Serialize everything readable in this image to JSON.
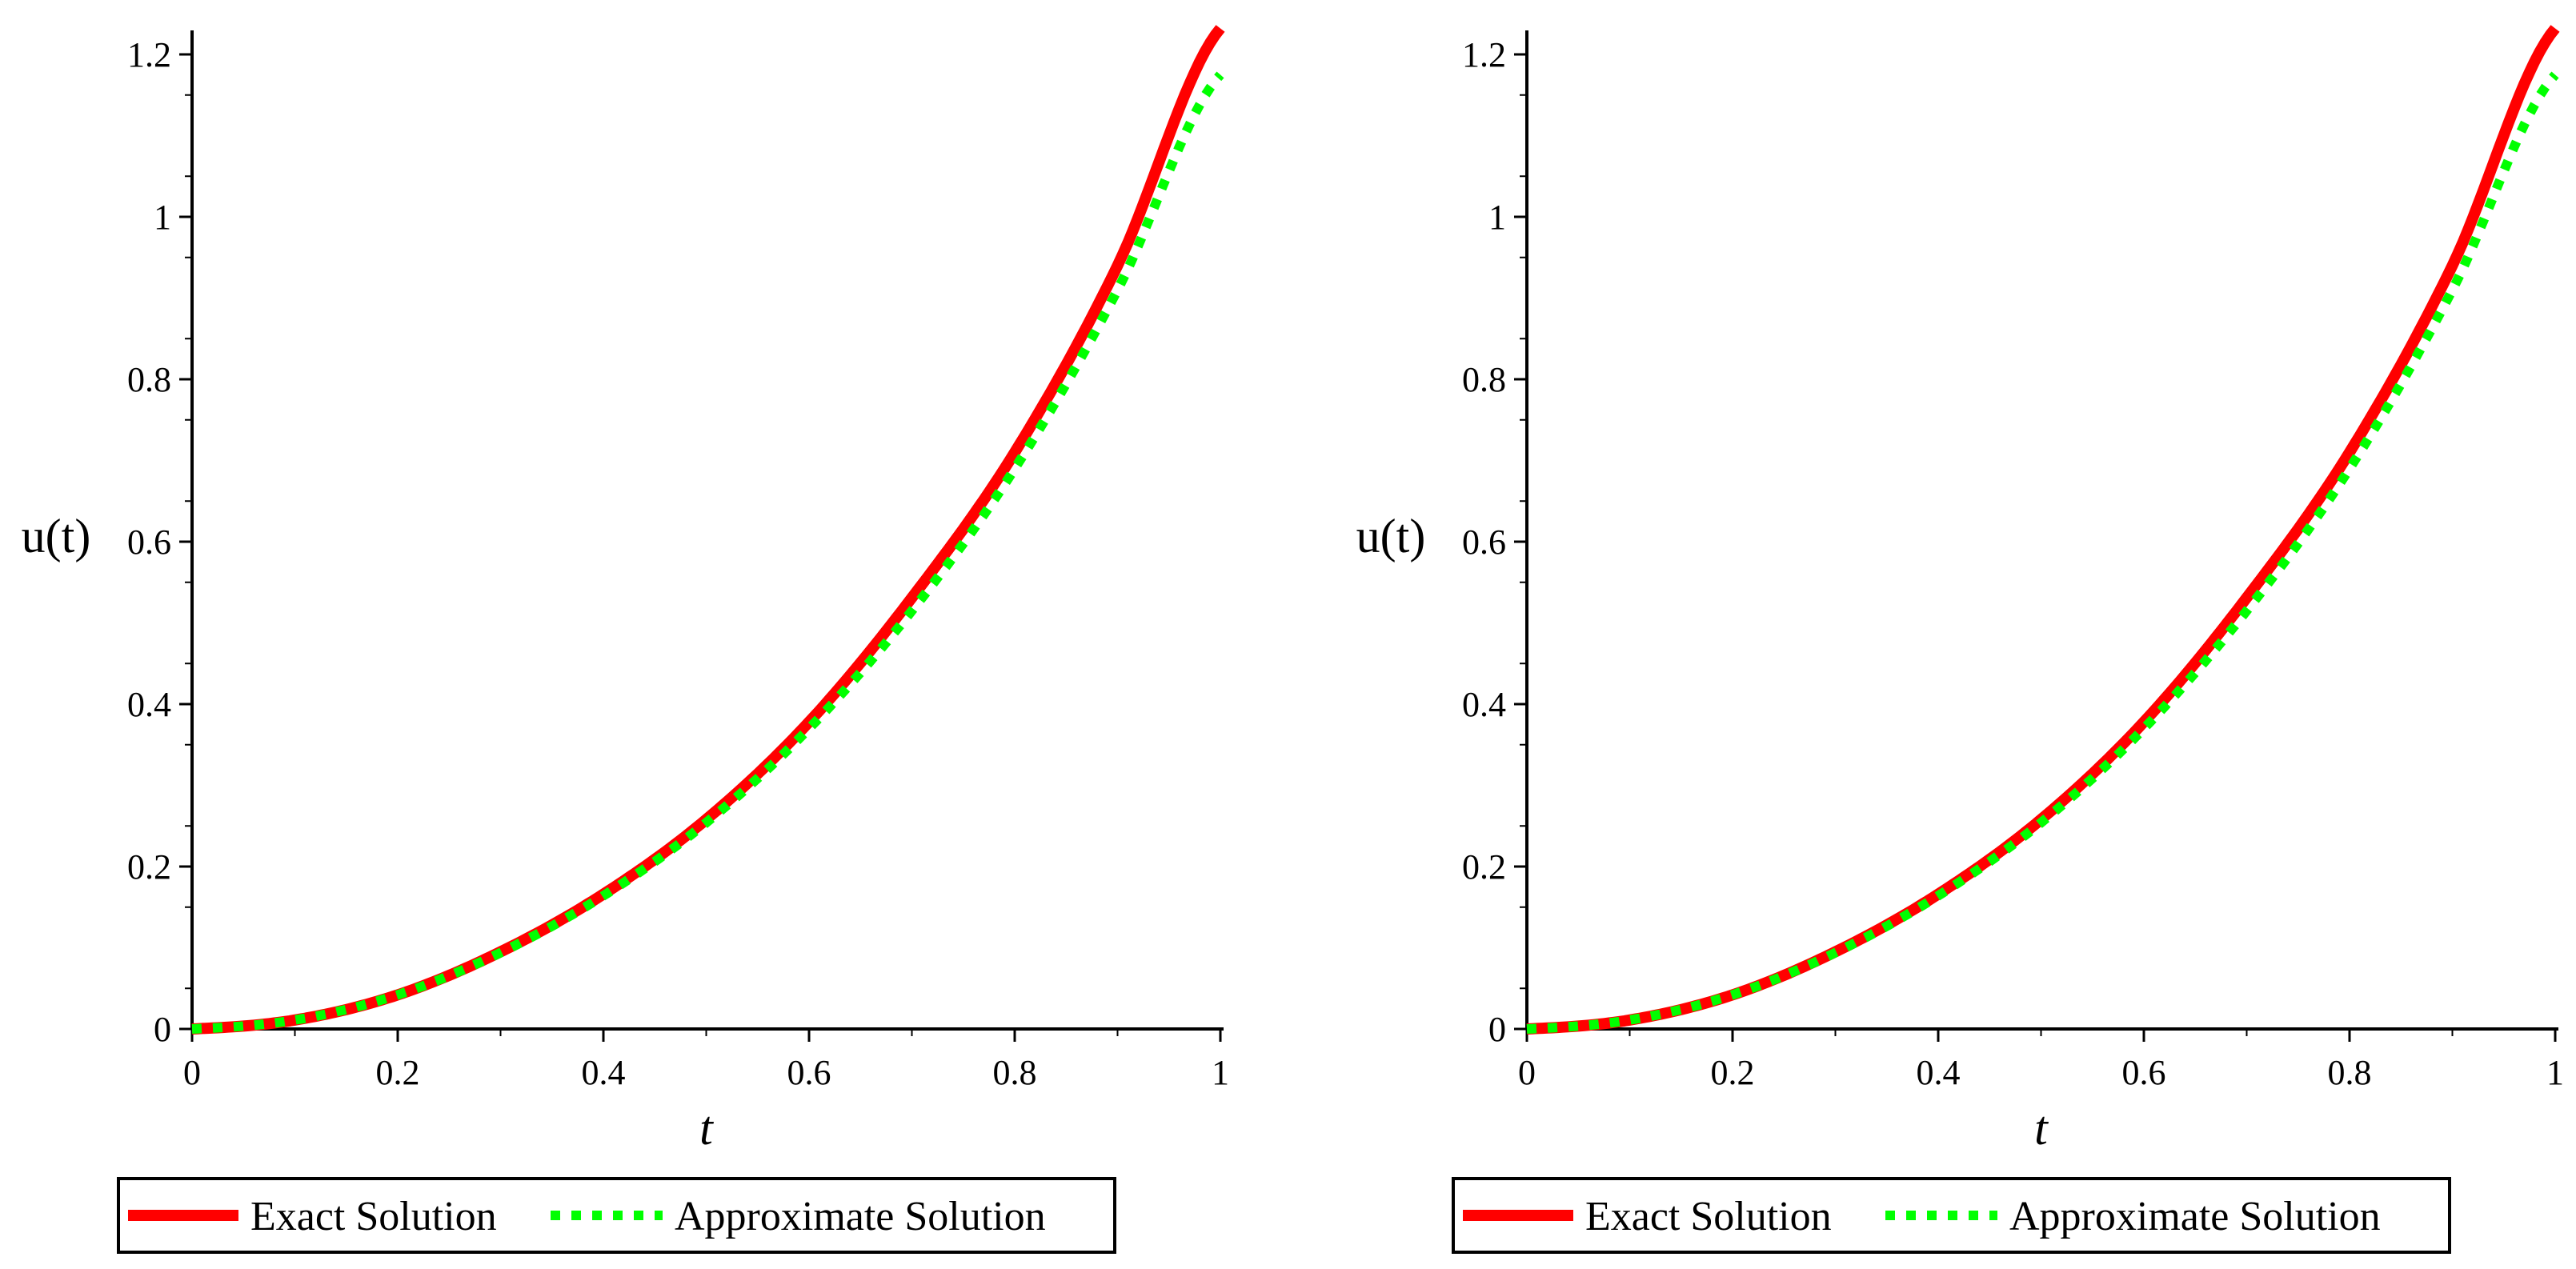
{
  "chart_data": [
    {
      "type": "line",
      "title": "",
      "xlabel": "t",
      "ylabel": "u(t)",
      "xlim": [
        0,
        1
      ],
      "ylim": [
        0,
        1.2
      ],
      "xticks": [
        0,
        0.2,
        0.4,
        0.6,
        0.8,
        1
      ],
      "xtick_labels": [
        "0",
        "0.2",
        "0.4",
        "0.6",
        "0.8",
        "1"
      ],
      "yticks": [
        0,
        0.2,
        0.4,
        0.6,
        0.8,
        1,
        1.2
      ],
      "ytick_labels": [
        "0",
        "0.2",
        "0.4",
        "0.6",
        "0.8",
        "1",
        "1.2"
      ],
      "grid": false,
      "legend_position": "bottom",
      "series": [
        {
          "name": "Exact Solution",
          "color": "#ff0000",
          "style": "solid",
          "x": [
            0,
            0.1,
            0.2,
            0.3,
            0.4,
            0.5,
            0.6,
            0.7,
            0.8,
            0.9,
            1.0
          ],
          "y": [
            0,
            0.011,
            0.042,
            0.095,
            0.166,
            0.258,
            0.378,
            0.531,
            0.71,
            0.94,
            1.232
          ]
        },
        {
          "name": "Approximate Solution",
          "color": "#00ff00",
          "style": "dotted",
          "x": [
            0,
            0.1,
            0.2,
            0.3,
            0.4,
            0.5,
            0.6,
            0.7,
            0.8,
            0.9,
            1.0
          ],
          "y": [
            0,
            0.011,
            0.042,
            0.094,
            0.164,
            0.254,
            0.37,
            0.515,
            0.69,
            0.91,
            1.175
          ]
        }
      ]
    },
    {
      "type": "line",
      "title": "",
      "xlabel": "t",
      "ylabel": "u(t)",
      "xlim": [
        0,
        1
      ],
      "ylim": [
        0,
        1.2
      ],
      "xticks": [
        0,
        0.2,
        0.4,
        0.6,
        0.8,
        1
      ],
      "xtick_labels": [
        "0",
        "0.2",
        "0.4",
        "0.6",
        "0.8",
        "1"
      ],
      "yticks": [
        0,
        0.2,
        0.4,
        0.6,
        0.8,
        1,
        1.2
      ],
      "ytick_labels": [
        "0",
        "0.2",
        "0.4",
        "0.6",
        "0.8",
        "1",
        "1.2"
      ],
      "grid": false,
      "legend_position": "bottom",
      "series": [
        {
          "name": "Exact Solution",
          "color": "#ff0000",
          "style": "solid",
          "x": [
            0,
            0.1,
            0.2,
            0.3,
            0.4,
            0.5,
            0.6,
            0.7,
            0.8,
            0.9,
            1.0
          ],
          "y": [
            0,
            0.011,
            0.042,
            0.095,
            0.166,
            0.258,
            0.378,
            0.531,
            0.71,
            0.94,
            1.232
          ]
        },
        {
          "name": "Approximate Solution",
          "color": "#00ff00",
          "style": "dotted",
          "x": [
            0,
            0.1,
            0.2,
            0.3,
            0.4,
            0.5,
            0.6,
            0.7,
            0.8,
            0.9,
            1.0
          ],
          "y": [
            0,
            0.011,
            0.042,
            0.094,
            0.164,
            0.254,
            0.37,
            0.515,
            0.69,
            0.91,
            1.175
          ]
        }
      ]
    }
  ]
}
